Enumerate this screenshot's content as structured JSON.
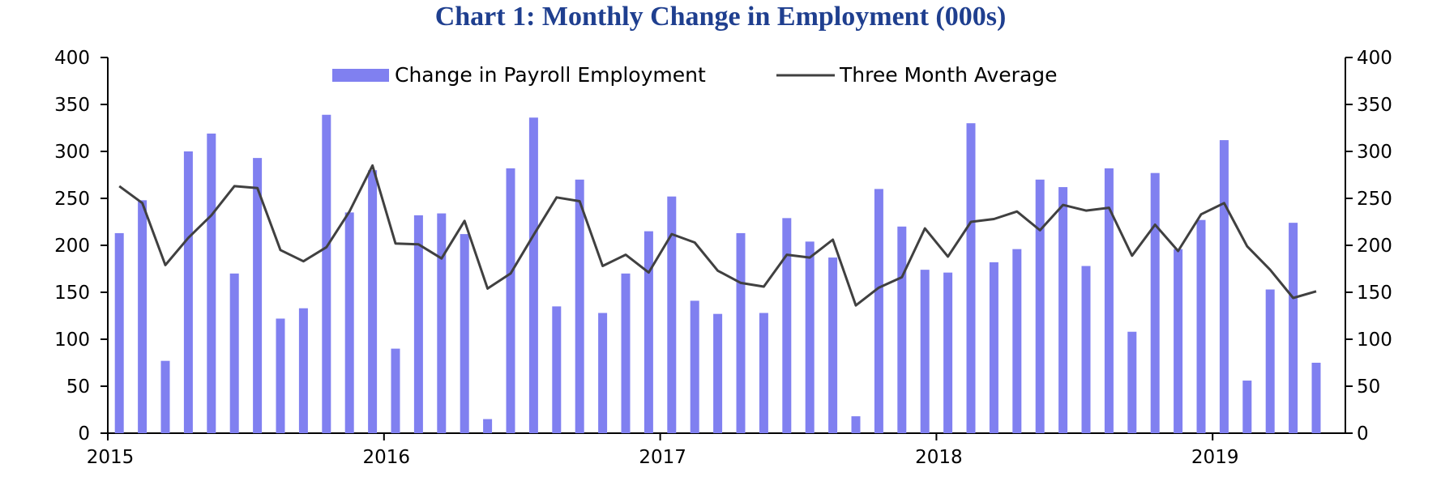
{
  "chart_data": {
    "type": "bar",
    "title": "Chart 1: Monthly Change in Employment (000s)",
    "xlabel": "",
    "ylabel": "",
    "ylim": [
      0,
      400
    ],
    "yticks": [
      0,
      50,
      100,
      150,
      200,
      250,
      300,
      350,
      400
    ],
    "y2ticks": [
      0,
      50,
      100,
      150,
      200,
      250,
      300,
      350,
      400
    ],
    "x_tick_labels": [
      "2015",
      "2016",
      "2017",
      "2018",
      "2019"
    ],
    "x_tick_month_index": [
      0,
      12,
      24,
      36,
      48
    ],
    "months_start": "2015-01",
    "legend": {
      "placement": "top",
      "bar_label": "Change in Payroll Employment",
      "line_label": "Three Month Average"
    },
    "colors": {
      "bars": "#8080f0",
      "line": "#404040",
      "title": "#1f3f8f"
    },
    "series": [
      {
        "name": "Change in Payroll Employment",
        "type": "bar",
        "values": [
          213,
          248,
          77,
          300,
          319,
          170,
          293,
          122,
          133,
          339,
          235,
          280,
          90,
          232,
          234,
          212,
          15,
          282,
          336,
          135,
          270,
          128,
          170,
          215,
          252,
          141,
          127,
          213,
          128,
          229,
          204,
          187,
          18,
          260,
          220,
          174,
          171,
          330,
          182,
          196,
          270,
          262,
          178,
          282,
          108,
          277,
          196,
          227,
          312,
          56,
          153,
          224,
          75
        ]
      },
      {
        "name": "Three Month Average",
        "type": "line",
        "values": [
          263,
          245,
          179,
          208,
          232,
          263,
          261,
          195,
          183,
          198,
          236,
          285,
          202,
          201,
          186,
          226,
          154,
          170,
          211,
          251,
          247,
          178,
          190,
          171,
          212,
          203,
          173,
          160,
          156,
          190,
          187,
          206,
          136,
          155,
          166,
          218,
          188,
          225,
          228,
          236,
          216,
          243,
          237,
          240,
          189,
          222,
          194,
          233,
          245,
          199,
          174,
          144,
          151
        ]
      }
    ]
  }
}
